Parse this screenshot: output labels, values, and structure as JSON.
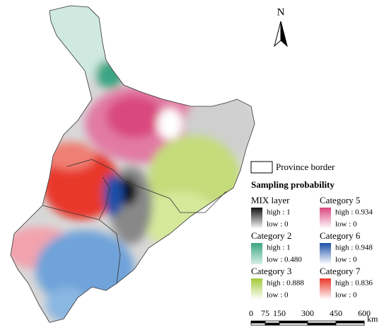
{
  "north_arrow": "N",
  "legend": {
    "border_label": "Province border",
    "title": "Sampling probability",
    "layers": [
      {
        "name": "MIX layer",
        "high": "high : 1",
        "low": "low : 0",
        "high_color": "#111111",
        "low_color": "#ffffff"
      },
      {
        "name": "Category 2",
        "high": "high : 1",
        "low": "low : 0.480",
        "high_color": "#3aa583",
        "low_color": "#d7efe6"
      },
      {
        "name": "Category 3",
        "high": "high : 0.888",
        "low": "low : 0",
        "high_color": "#a3c93a",
        "low_color": "#ffffff"
      },
      {
        "name": "Category 5",
        "high": "high : 0.934",
        "low": "low : 0",
        "high_color": "#d9487f",
        "low_color": "#ffffff"
      },
      {
        "name": "Category 6",
        "high": "high : 0.948",
        "low": "low : 0",
        "high_color": "#1d4fa8",
        "low_color": "#ffffff"
      },
      {
        "name": "Category 7",
        "high": "high : 0.836",
        "low": "low : 0",
        "high_color": "#e8392b",
        "low_color": "#ffffff"
      }
    ]
  },
  "scale_bar": {
    "ticks": [
      0,
      75,
      150,
      300,
      450,
      600
    ],
    "unit": "km"
  }
}
